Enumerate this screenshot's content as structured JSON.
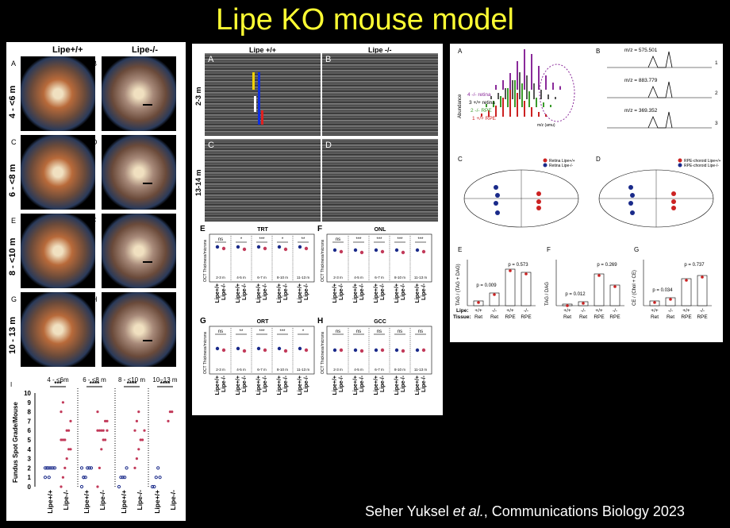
{
  "title": "Lipe KO mouse model",
  "credit": {
    "author": "Seher Yuksel",
    "etal": "et al.",
    "rest": ", Communications Biology 2023"
  },
  "fundus": {
    "col_wt": "Lipe+/+",
    "col_ko": "Lipe-/-",
    "letters": [
      "A",
      "B",
      "C",
      "D",
      "E",
      "F",
      "G",
      "H"
    ],
    "rows": [
      "4 - <6 m",
      "6 - <8 m",
      "8 - <10 m",
      "10 - 13 m"
    ],
    "ylabel": "Fundus Spot Grade/Mouse",
    "group_labels": [
      "4 - <6m",
      "6 - <8 m",
      "8 - <10 m",
      "10–13 m"
    ],
    "sig": [
      "***",
      "****",
      "****",
      "****"
    ],
    "yticks": [
      "0",
      "1",
      "2",
      "3",
      "4",
      "5",
      "6",
      "7",
      "8",
      "9",
      "10"
    ],
    "xticks": [
      "Lipe+/+",
      "Lipe-/-",
      "Lipe+/+",
      "Lipe-/-",
      "Lipe+/+",
      "Lipe-/-",
      "Lipe+/+",
      "Lipe-/-"
    ],
    "panel_letter": "I"
  },
  "oct": {
    "col_wt": "Lipe +/+",
    "col_ko": "Lipe -/-",
    "letters": [
      "A",
      "B",
      "C",
      "D"
    ],
    "rows": [
      "2-3 m",
      "13-14 m"
    ],
    "charts": [
      {
        "letter": "E",
        "title": "TRT",
        "sig": [
          "ns",
          "*",
          "***",
          "*",
          "**"
        ]
      },
      {
        "letter": "F",
        "title": "ONL",
        "sig": [
          "ns",
          "***",
          "***",
          "***",
          "***"
        ]
      },
      {
        "letter": "G",
        "title": "ORT",
        "sig": [
          "ns",
          "**",
          "***",
          "***",
          "*"
        ]
      },
      {
        "letter": "H",
        "title": "GCC",
        "sig": [
          "ns",
          "ns",
          "ns",
          "ns",
          "ns"
        ]
      }
    ],
    "age_groups": [
      "2-3 m",
      "4-5 m",
      "6-7 m",
      "8-10 m",
      "11-13 m"
    ],
    "ylabel": "OCT Thickness/microns",
    "xtick_wt": "Lipe+/+",
    "xtick_ko": "Lipe-/-"
  },
  "lipid": {
    "letters": [
      "A",
      "B",
      "C",
      "D",
      "E",
      "F",
      "G"
    ],
    "ms_labels": [
      "4  -/- retina",
      "3 +/+ retina",
      "2  -/- RPE",
      "1 +/+ RPE"
    ],
    "ms_xlabel": "m/z (amu)",
    "ms_ylabel": "Abundance",
    "mz": [
      "m/z = 575.501",
      "m/z = 883.779",
      "m/z = 369.352"
    ],
    "mz_idx": [
      "1",
      "2",
      "3"
    ],
    "pca_legend_c": [
      "Retina Lipe+/+",
      "Retina Lipe-/-"
    ],
    "pca_legend_d": [
      "RPE-choroid Lipe+/+",
      "RPE-choroid Lipe-/-"
    ],
    "bar_e": {
      "ylabel": "TAG / (TAG + DAG)",
      "p1": "p = 0.009",
      "p2": "p = 0.573"
    },
    "bar_f": {
      "ylabel": "TAG / DAG",
      "p1": "p = 0.012",
      "p2": "p = 0.269"
    },
    "bar_g": {
      "ylabel": "CE / (Chol + CE)",
      "p1": "p = 0.034",
      "p2": "p = 0.737"
    },
    "lipe_row_label": "Lipe:",
    "tissue_row_label": "Tissue:",
    "lipe_vals": [
      "+/+",
      "-/-",
      "+/+",
      "-/-"
    ],
    "tissue_vals": [
      "Ret",
      "Ret",
      "RPE",
      "RPE"
    ]
  },
  "colors": {
    "title": "#ffff33",
    "wt": "#1a2a8a",
    "ko": "#c23a5a",
    "sig_red": "#cc2222",
    "green": "#3a9a2a",
    "purple": "#8a2a9a"
  }
}
